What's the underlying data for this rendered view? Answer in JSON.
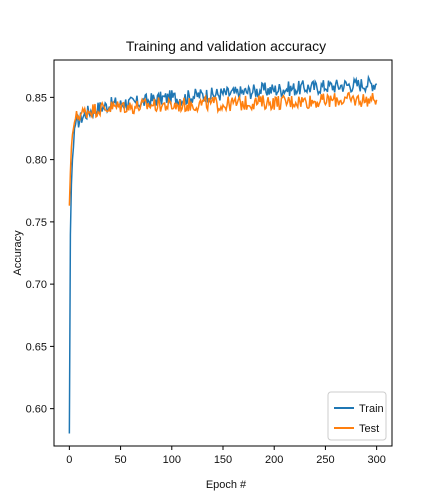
{
  "chart_data": {
    "type": "line",
    "title": "Training and validation accuracy",
    "xlabel": "Epoch #",
    "ylabel": "Accuracy",
    "xlim": [
      -15,
      315
    ],
    "ylim": [
      0.57,
      0.88
    ],
    "x_ticks": [
      0,
      50,
      100,
      150,
      200,
      250,
      300
    ],
    "y_ticks": [
      0.6,
      0.65,
      0.7,
      0.75,
      0.8,
      0.85
    ],
    "grid": false,
    "legend_position": "lower-right",
    "x": [
      0,
      1,
      2,
      3,
      4,
      5,
      6,
      8,
      10,
      12,
      15,
      18,
      20,
      25,
      30,
      35,
      40,
      45,
      50,
      55,
      60,
      70,
      80,
      90,
      100,
      110,
      120,
      130,
      140,
      150,
      160,
      170,
      180,
      190,
      200,
      210,
      220,
      230,
      240,
      250,
      260,
      270,
      280,
      290,
      300
    ],
    "series": [
      {
        "name": "Train",
        "color": "#1f77b4",
        "values": [
          0.58,
          0.74,
          0.78,
          0.8,
          0.81,
          0.825,
          0.828,
          0.83,
          0.832,
          0.834,
          0.836,
          0.838,
          0.839,
          0.84,
          0.842,
          0.843,
          0.844,
          0.845,
          0.844,
          0.846,
          0.845,
          0.846,
          0.848,
          0.849,
          0.85,
          0.849,
          0.851,
          0.852,
          0.852,
          0.853,
          0.853,
          0.854,
          0.855,
          0.856,
          0.856,
          0.857,
          0.857,
          0.858,
          0.858,
          0.859,
          0.859,
          0.86,
          0.86,
          0.861,
          0.861
        ]
      },
      {
        "name": "Test",
        "color": "#ff7f0e",
        "values": [
          0.763,
          0.79,
          0.81,
          0.82,
          0.825,
          0.83,
          0.833,
          0.835,
          0.836,
          0.837,
          0.838,
          0.839,
          0.84,
          0.84,
          0.841,
          0.841,
          0.842,
          0.842,
          0.843,
          0.843,
          0.842,
          0.843,
          0.844,
          0.844,
          0.843,
          0.844,
          0.844,
          0.845,
          0.845,
          0.844,
          0.845,
          0.845,
          0.846,
          0.846,
          0.846,
          0.846,
          0.847,
          0.847,
          0.847,
          0.847,
          0.848,
          0.848,
          0.848,
          0.848,
          0.848
        ]
      }
    ]
  }
}
